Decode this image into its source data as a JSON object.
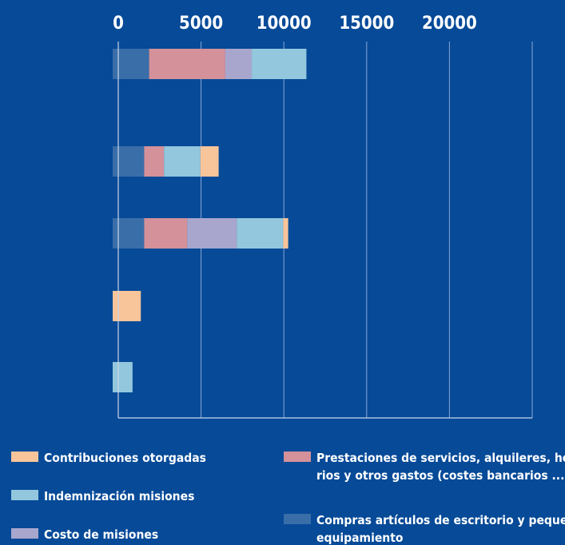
{
  "chart_data": {
    "type": "bar",
    "orientation": "horizontal",
    "stacked": true,
    "categories": [
      "",
      "",
      "",
      "",
      ""
    ],
    "xlim": [
      0,
      25000
    ],
    "x_ticks": [
      "0",
      "5000",
      "10000",
      "15000",
      "20000"
    ],
    "x_tick_values": [
      0,
      5000,
      10000,
      15000,
      20000
    ],
    "xaxis_position": "top",
    "grid": true,
    "legend_position": "bottom",
    "series": [
      {
        "name": "Compras artículos de escritorio y pequeño equipamiento",
        "color": "#3a6ea8",
        "values": [
          2200,
          1900,
          1900,
          0,
          0
        ]
      },
      {
        "name": "Prestaciones de servicios, alquileres, honorarios y otros gastos (costes bancarios ...)",
        "color": "#d4919a",
        "values": [
          4600,
          1200,
          2600,
          0,
          0
        ]
      },
      {
        "name": "Costo de misiones",
        "color": "#a9a6cd",
        "values": [
          1600,
          0,
          3000,
          0,
          0
        ]
      },
      {
        "name": "Indemnización misiones",
        "color": "#93c7dd",
        "values": [
          3300,
          2200,
          2800,
          0,
          1200
        ]
      },
      {
        "name": "Contribuciones otorgadas",
        "color": "#f8c49a",
        "values": [
          0,
          1100,
          300,
          1700,
          0
        ]
      }
    ],
    "legend": [
      {
        "series": 4,
        "lines": [
          "Contribuciones otorgadas"
        ]
      },
      {
        "series": 1,
        "lines": [
          "Prestaciones de servicios, alquileres, honora-",
          "rios y otros gastos (costes bancarios ...)"
        ]
      },
      {
        "series": 3,
        "lines": [
          "Indemnización misiones"
        ]
      },
      {
        "series": 0,
        "lines": [
          "Compras artículos de escritorio y pequeño",
          "equipamiento"
        ]
      },
      {
        "series": 2,
        "lines": [
          "Costo de misiones"
        ]
      }
    ]
  }
}
